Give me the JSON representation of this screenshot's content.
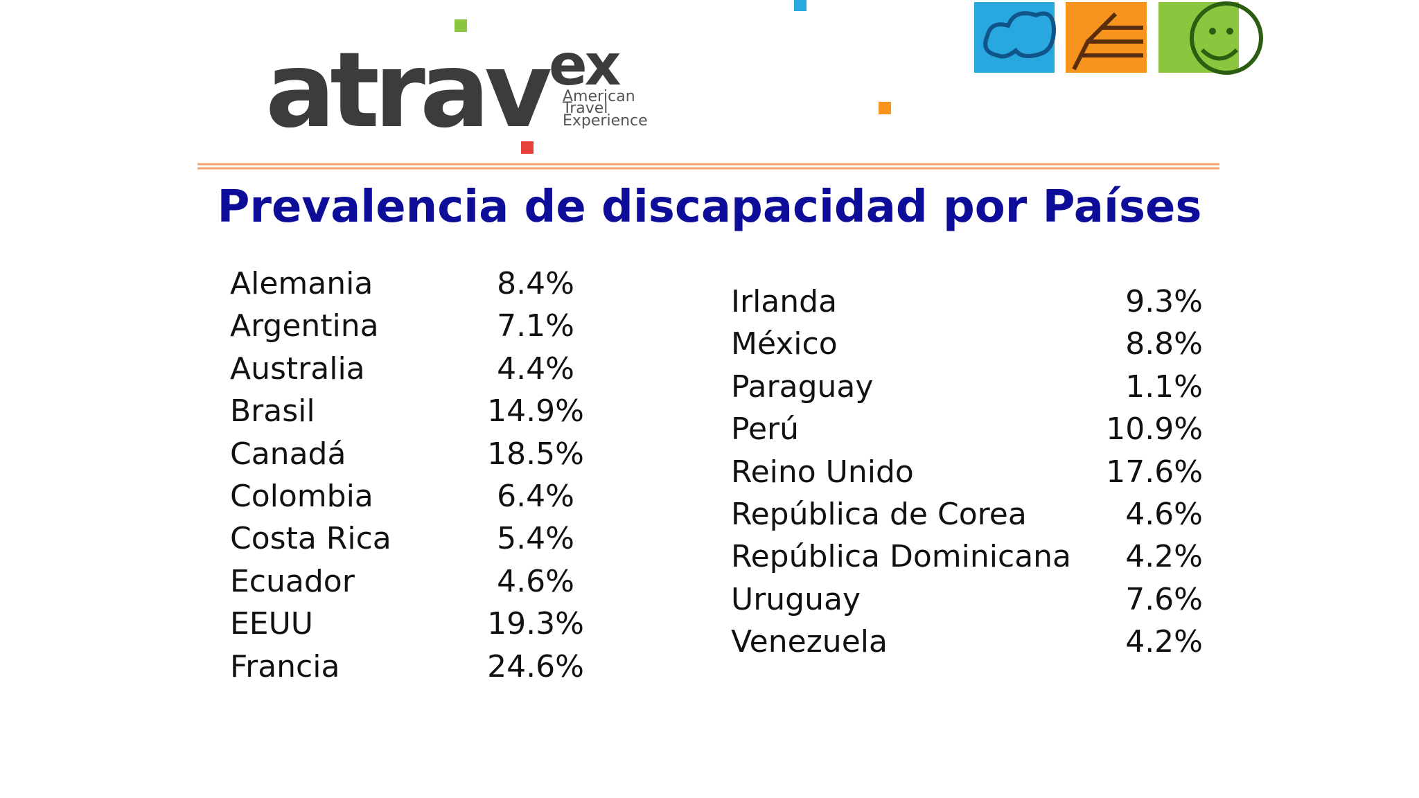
{
  "logo": {
    "main": "atrav",
    "suffix": "ex",
    "tagline": [
      "American",
      "Travel",
      "Experience"
    ]
  },
  "title": "Prevalencia de discapacidad por Países",
  "left_list": [
    {
      "country": "Alemania",
      "value": "8.4%"
    },
    {
      "country": "Argentina",
      "value": "7.1%"
    },
    {
      "country": "Australia",
      "value": "4.4%"
    },
    {
      "country": "Brasil",
      "value": "14.9%"
    },
    {
      "country": "Canadá",
      "value": "18.5%"
    },
    {
      "country": "Colombia",
      "value": "6.4%"
    },
    {
      "country": "Costa Rica",
      "value": "5.4%"
    },
    {
      "country": "Ecuador",
      "value": "4.6%"
    },
    {
      "country": "EEUU",
      "value": "19.3%"
    },
    {
      "country": "Francia",
      "value": "24.6%"
    }
  ],
  "right_list": [
    {
      "country": "Irlanda",
      "value": "9.3%"
    },
    {
      "country": "México",
      "value": "8.8%"
    },
    {
      "country": "Paraguay",
      "value": "1.1%"
    },
    {
      "country": "Perú",
      "value": "10.9%"
    },
    {
      "country": "Reino Unido",
      "value": "17.6%"
    },
    {
      "country": "República de Corea",
      "value": "4.6%"
    },
    {
      "country": "República Dominicana",
      "value": "4.2%"
    },
    {
      "country": "Uruguay",
      "value": "7.6%"
    },
    {
      "country": "Venezuela",
      "value": "4.2%"
    }
  ]
}
